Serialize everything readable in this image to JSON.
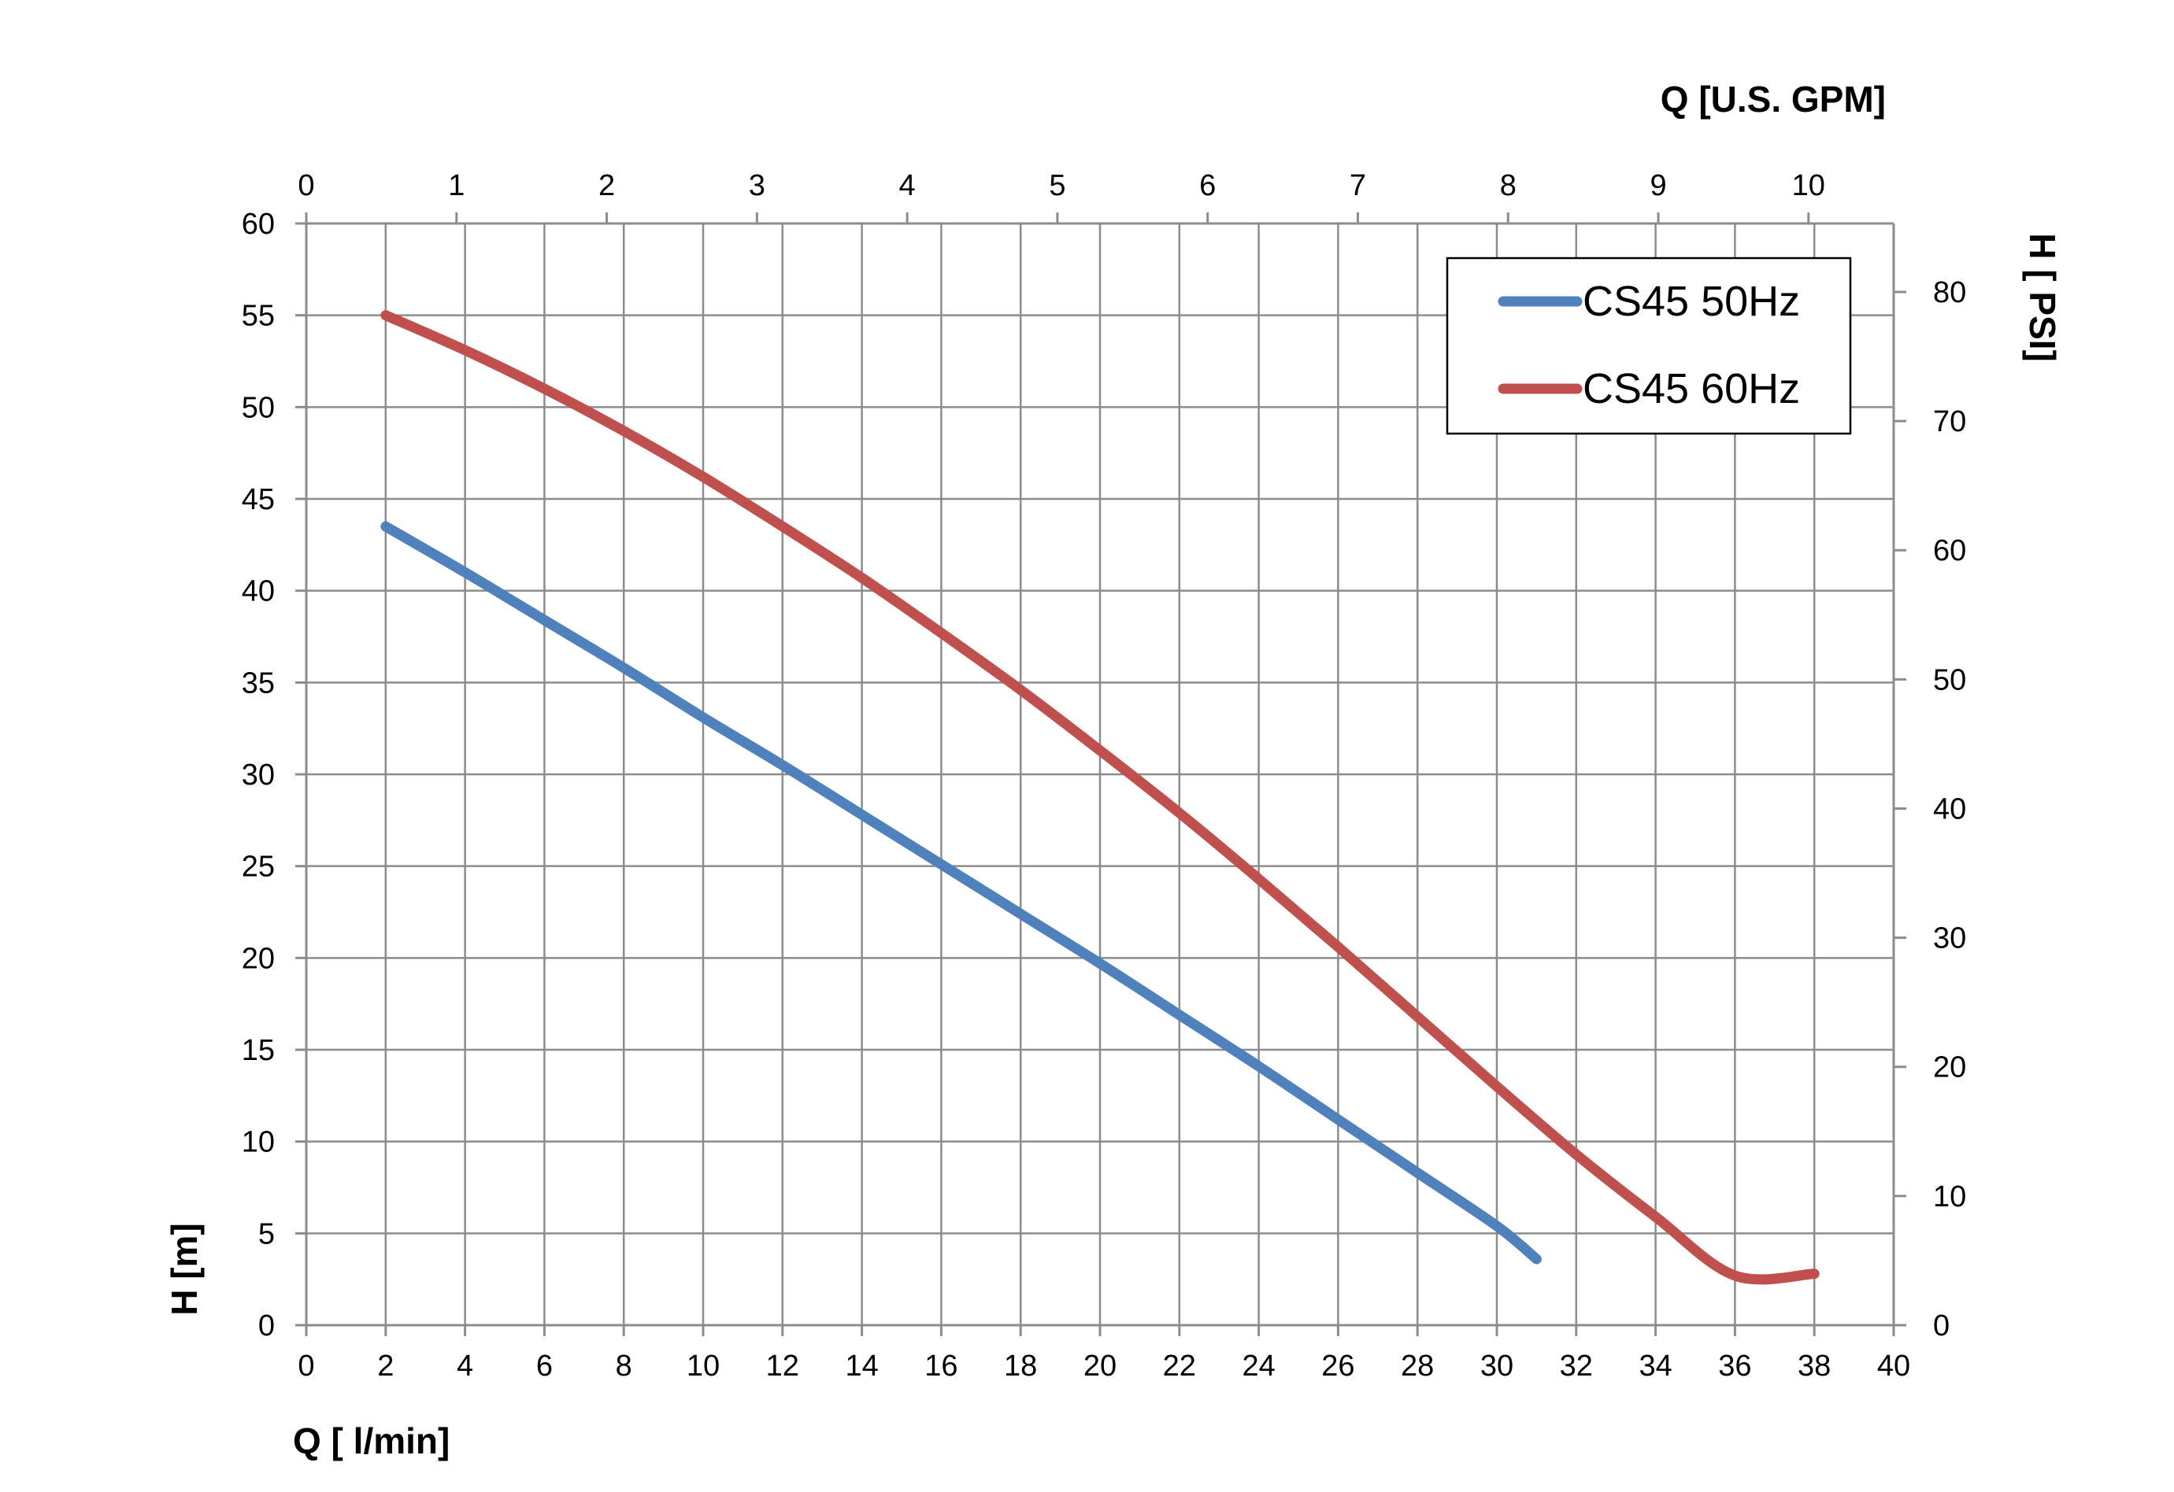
{
  "chart_data": {
    "type": "line",
    "x_bottom": {
      "label": "Q [ l/min]",
      "range": [
        0,
        40
      ],
      "ticks": [
        "0",
        "2",
        "4",
        "6",
        "8",
        "10",
        "12",
        "14",
        "16",
        "18",
        "20",
        "22",
        "24",
        "26",
        "28",
        "30",
        "32",
        "34",
        "36",
        "38",
        "40"
      ]
    },
    "x_top": {
      "label": "Q  [U.S. GPM]",
      "range": [
        0,
        10.567
      ],
      "ticks": [
        "0",
        "1",
        "2",
        "3",
        "4",
        "5",
        "6",
        "7",
        "8",
        "9",
        "10"
      ]
    },
    "y_left": {
      "label": "H [m]",
      "range": [
        0,
        60
      ],
      "ticks": [
        "0",
        "5",
        "10",
        "15",
        "20",
        "25",
        "30",
        "35",
        "40",
        "45",
        "50",
        "55",
        "60"
      ]
    },
    "y_right": {
      "label": "H [ PSI]",
      "range": [
        0,
        85.3
      ],
      "ticks": [
        "0",
        "10",
        "20",
        "30",
        "40",
        "50",
        "60",
        "70",
        "80"
      ]
    },
    "grid": true,
    "legend_position": "top-right",
    "series": [
      {
        "name": "CS45 50Hz",
        "color": "#4f81bd",
        "x": [
          2,
          4,
          6,
          8,
          10,
          12,
          14,
          16,
          18,
          20,
          22,
          24,
          26,
          28,
          30,
          31
        ],
        "y": [
          43.5,
          41.0,
          38.4,
          35.8,
          33.1,
          30.5,
          27.8,
          25.1,
          22.4,
          19.7,
          16.9,
          14.1,
          11.2,
          8.3,
          5.4,
          3.6
        ]
      },
      {
        "name": "CS45 60Hz",
        "color": "#c0504d",
        "x": [
          2,
          4,
          6,
          8,
          10,
          12,
          14,
          16,
          18,
          20,
          22,
          24,
          26,
          28,
          30,
          32,
          34,
          36,
          38
        ],
        "y": [
          55.0,
          53.1,
          51.0,
          48.7,
          46.2,
          43.5,
          40.7,
          37.7,
          34.6,
          31.3,
          27.9,
          24.3,
          20.6,
          16.8,
          13.0,
          9.3,
          5.9,
          2.7,
          2.8
        ]
      }
    ]
  }
}
